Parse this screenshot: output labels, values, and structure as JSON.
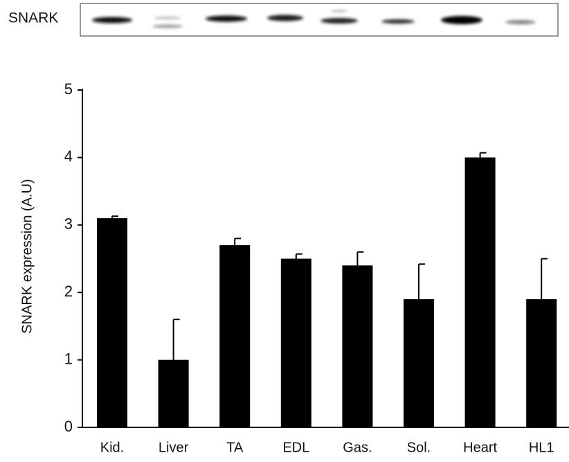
{
  "blot": {
    "label": "SNARK"
  },
  "chart_data": {
    "type": "bar",
    "y_label": "SNARK expression  (A.U)",
    "categories": [
      "Kid.",
      "Liver",
      "TA",
      "EDL",
      "Gas.",
      "Sol.",
      "Heart",
      "HL1"
    ],
    "values": [
      3.1,
      1.0,
      2.7,
      2.5,
      2.4,
      1.9,
      4.0,
      1.9
    ],
    "errors": [
      0.03,
      0.6,
      0.1,
      0.07,
      0.2,
      0.52,
      0.07,
      0.6
    ],
    "color": "#000000",
    "ylim": [
      0,
      5
    ],
    "yticks": [
      0,
      1,
      2,
      3,
      4,
      5
    ],
    "grid": false
  }
}
